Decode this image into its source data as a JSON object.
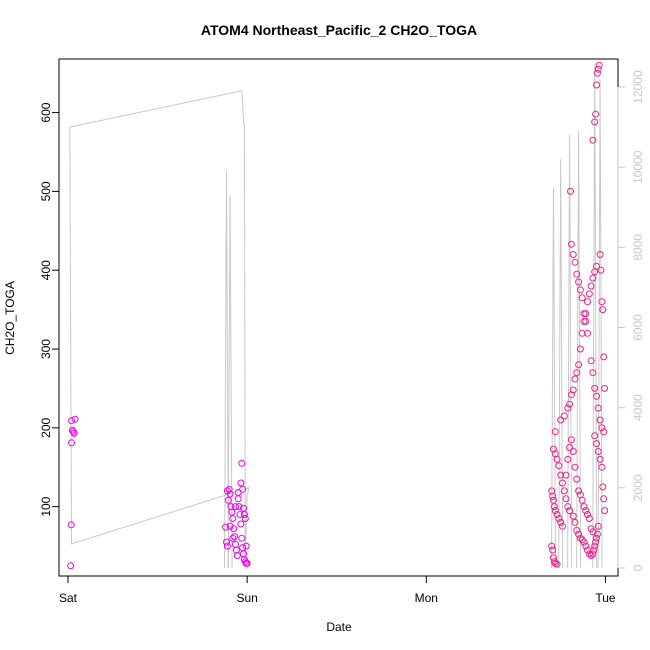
{
  "chart_data": {
    "type": "scatter",
    "title": "ATOM4 Northeast_Pacific_2 CH2O_TOGA",
    "xlabel": "Date",
    "ylabel": "CH2O_TOGA",
    "x_ticks": [
      "Sat",
      "Sun",
      "Mon",
      "Tue"
    ],
    "y_ticks": [
      "100",
      "200",
      "300",
      "400",
      "500",
      "600"
    ],
    "y2_ticks": [
      "0",
      "2000",
      "4000",
      "6000",
      "8000",
      "10000",
      "12000"
    ],
    "xlim_days": [
      -0.05,
      3.07
    ],
    "ylim": [
      12,
      668
    ],
    "y2lim": [
      -200,
      12700
    ],
    "grid": false,
    "colors": {
      "points_early": "#ee00ee",
      "points_late": "#ee2288",
      "line": "#c8c8c8"
    },
    "series": [
      {
        "role": "CH2O_TOGA points (left axis), x in days since Sat 00:00",
        "points": [
          [
            0.02,
            209
          ],
          [
            0.025,
            197
          ],
          [
            0.03,
            195
          ],
          [
            0.035,
            193
          ],
          [
            0.04,
            211
          ],
          [
            0.02,
            181
          ],
          [
            0.018,
            77
          ],
          [
            0.015,
            25
          ],
          [
            0.88,
            74
          ],
          [
            0.885,
            55
          ],
          [
            0.89,
            120
          ],
          [
            0.895,
            108
          ],
          [
            0.9,
            122
          ],
          [
            0.905,
            116
          ],
          [
            0.91,
            100
          ],
          [
            0.915,
            93
          ],
          [
            0.92,
            85
          ],
          [
            0.925,
            72
          ],
          [
            0.93,
            62
          ],
          [
            0.935,
            52
          ],
          [
            0.94,
            45
          ],
          [
            0.945,
            38
          ],
          [
            0.95,
            110
          ],
          [
            0.955,
            100
          ],
          [
            0.96,
            90
          ],
          [
            0.965,
            78
          ],
          [
            0.97,
            60
          ],
          [
            0.975,
            48
          ],
          [
            0.98,
            40
          ],
          [
            0.985,
            33
          ],
          [
            0.99,
            30
          ],
          [
            0.995,
            28
          ],
          [
            0.89,
            50
          ],
          [
            0.905,
            75
          ],
          [
            0.92,
            60
          ],
          [
            0.935,
            100
          ],
          [
            0.95,
            118
          ],
          [
            0.965,
            130
          ],
          [
            0.97,
            155
          ],
          [
            0.975,
            122
          ],
          [
            0.98,
            98
          ],
          [
            0.985,
            90
          ],
          [
            0.99,
            85
          ],
          [
            0.995,
            50
          ],
          [
            1.0,
            28
          ],
          [
            2.7,
            120
          ],
          [
            2.705,
            113
          ],
          [
            2.71,
            108
          ],
          [
            2.715,
            100
          ],
          [
            2.72,
            95
          ],
          [
            2.73,
            90
          ],
          [
            2.74,
            85
          ],
          [
            2.75,
            80
          ],
          [
            2.76,
            75
          ],
          [
            2.7,
            50
          ],
          [
            2.705,
            45
          ],
          [
            2.71,
            35
          ],
          [
            2.715,
            30
          ],
          [
            2.72,
            28
          ],
          [
            2.73,
            27
          ],
          [
            2.71,
            173
          ],
          [
            2.72,
            167
          ],
          [
            2.73,
            160
          ],
          [
            2.74,
            152
          ],
          [
            2.75,
            140
          ],
          [
            2.76,
            130
          ],
          [
            2.77,
            120
          ],
          [
            2.78,
            110
          ],
          [
            2.79,
            100
          ],
          [
            2.8,
            95
          ],
          [
            2.82,
            88
          ],
          [
            2.83,
            80
          ],
          [
            2.84,
            70
          ],
          [
            2.85,
            65
          ],
          [
            2.86,
            60
          ],
          [
            2.87,
            58
          ],
          [
            2.88,
            55
          ],
          [
            2.89,
            50
          ],
          [
            2.9,
            45
          ],
          [
            2.91,
            40
          ],
          [
            2.92,
            38
          ],
          [
            2.72,
            195
          ],
          [
            2.75,
            210
          ],
          [
            2.77,
            215
          ],
          [
            2.79,
            225
          ],
          [
            2.8,
            230
          ],
          [
            2.81,
            242
          ],
          [
            2.82,
            248
          ],
          [
            2.83,
            262
          ],
          [
            2.84,
            270
          ],
          [
            2.85,
            280
          ],
          [
            2.86,
            300
          ],
          [
            2.87,
            320
          ],
          [
            2.88,
            335
          ],
          [
            2.89,
            345
          ],
          [
            2.9,
            360
          ],
          [
            2.91,
            370
          ],
          [
            2.92,
            380
          ],
          [
            2.93,
            390
          ],
          [
            2.94,
            398
          ],
          [
            2.95,
            405
          ],
          [
            2.805,
            500
          ],
          [
            2.81,
            433
          ],
          [
            2.82,
            420
          ],
          [
            2.83,
            410
          ],
          [
            2.84,
            395
          ],
          [
            2.85,
            385
          ],
          [
            2.86,
            375
          ],
          [
            2.87,
            365
          ],
          [
            2.88,
            345
          ],
          [
            2.89,
            335
          ],
          [
            2.9,
            320
          ],
          [
            2.92,
            285
          ],
          [
            2.93,
            270
          ],
          [
            2.94,
            250
          ],
          [
            2.95,
            240
          ],
          [
            2.96,
            225
          ],
          [
            2.97,
            210
          ],
          [
            2.98,
            200
          ],
          [
            2.99,
            195
          ],
          [
            2.93,
            565
          ],
          [
            2.94,
            588
          ],
          [
            2.945,
            598
          ],
          [
            2.95,
            635
          ],
          [
            2.955,
            650
          ],
          [
            2.96,
            655
          ],
          [
            2.965,
            660
          ],
          [
            2.97,
            420
          ],
          [
            2.975,
            400
          ],
          [
            2.98,
            360
          ],
          [
            2.985,
            350
          ],
          [
            2.99,
            290
          ],
          [
            2.995,
            250
          ],
          [
            2.94,
            190
          ],
          [
            2.95,
            180
          ],
          [
            2.96,
            170
          ],
          [
            2.97,
            160
          ],
          [
            2.98,
            150
          ],
          [
            2.985,
            125
          ],
          [
            2.99,
            110
          ],
          [
            2.995,
            95
          ],
          [
            2.96,
            75
          ],
          [
            2.955,
            65
          ],
          [
            2.95,
            60
          ],
          [
            2.945,
            55
          ],
          [
            2.94,
            50
          ],
          [
            2.935,
            45
          ],
          [
            2.93,
            40
          ],
          [
            2.78,
            140
          ],
          [
            2.79,
            160
          ],
          [
            2.8,
            175
          ],
          [
            2.81,
            185
          ],
          [
            2.82,
            170
          ],
          [
            2.83,
            150
          ],
          [
            2.84,
            135
          ],
          [
            2.85,
            120
          ],
          [
            2.86,
            115
          ],
          [
            2.87,
            108
          ],
          [
            2.88,
            100
          ],
          [
            2.89,
            95
          ],
          [
            2.9,
            90
          ],
          [
            2.91,
            85
          ],
          [
            2.92,
            72
          ],
          [
            2.93,
            68
          ]
        ]
      },
      {
        "role": "connected line (right axis), x in days since Sat 00:00",
        "line": [
          [
            0.01,
            11000
          ],
          [
            0.96,
            11900
          ],
          [
            0.97,
            11900
          ],
          [
            0.98,
            11200
          ],
          [
            0.985,
            11000
          ],
          [
            0.99,
            200
          ],
          [
            1.0,
            1800
          ],
          [
            1.01,
            2000
          ],
          [
            0.02,
            600
          ],
          [
            0.01,
            11000
          ]
        ],
        "spikes": [
          [
            0.885,
            9900
          ],
          [
            0.905,
            9300
          ],
          [
            2.71,
            9500
          ],
          [
            2.75,
            10200
          ],
          [
            2.8,
            10800
          ],
          [
            2.85,
            10900
          ],
          [
            2.94,
            12600
          ],
          [
            2.97,
            12200
          ]
        ]
      }
    ]
  }
}
